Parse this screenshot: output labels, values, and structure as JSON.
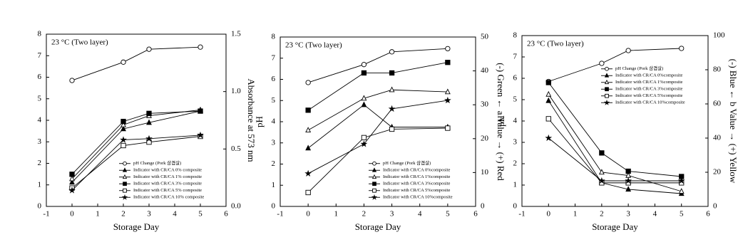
{
  "chart_data": [
    {
      "type": "line",
      "annotation": "23 °C (Two layer)",
      "xlabel": "Storage Day",
      "y2label": "Absorbance at 573 nm",
      "x": [
        0,
        2,
        3,
        5
      ],
      "xlim": [
        -1,
        6
      ],
      "xticks": [
        -1,
        0,
        1,
        2,
        3,
        4,
        5,
        6
      ],
      "ylim": [
        0,
        8
      ],
      "yticks": [
        0,
        1,
        2,
        3,
        4,
        5,
        6,
        7,
        8
      ],
      "y2lim": [
        0,
        1.5
      ],
      "y2ticks": [
        {
          "value": 0,
          "label": "0.0"
        },
        0.5,
        {
          "value": 1,
          "label": "1.0"
        },
        1.5
      ],
      "legend": "lower right",
      "series": [
        {
          "name": "pH Change (Pork 삼겹살)",
          "marker": "circle-open",
          "color": "#000000",
          "values": [
            5.85,
            6.7,
            7.3,
            7.4
          ]
        },
        {
          "name": "Indicator with CR/CA 0% composite",
          "marker": "triangle-filled",
          "color": "#000000",
          "axis": "y2",
          "values": [
            0.21,
            0.675,
            0.73,
            0.83
          ]
        },
        {
          "name": "Indicator with CR/CA 1% composite",
          "marker": "triangle-open",
          "color": "#000000",
          "axis": "y2",
          "values": [
            0.24,
            0.71,
            0.79,
            0.84
          ]
        },
        {
          "name": "Indicator with CR/CA 3% composite",
          "marker": "square-filled",
          "color": "#000000",
          "axis": "y2",
          "values": [
            0.28,
            0.74,
            0.81,
            0.83
          ]
        },
        {
          "name": "Indicator with CR/CA 5% composite",
          "marker": "square-open",
          "color": "#000000",
          "axis": "y2",
          "values": [
            0.16,
            0.53,
            0.56,
            0.61
          ]
        },
        {
          "name": "Indicator with CR/CA 10% composite",
          "marker": "star",
          "color": "#000000",
          "axis": "y2",
          "values": [
            0.14,
            0.58,
            0.59,
            0.62
          ]
        }
      ]
    },
    {
      "type": "line",
      "annotation": "23 °C (Two layer)",
      "xlabel": "Storage Day",
      "ylabel": "pH",
      "y2label": "(-) Green ← a Value → (+) Red",
      "x": [
        0,
        2,
        3,
        5
      ],
      "xlim": [
        -1,
        6
      ],
      "xticks": [
        -1,
        0,
        1,
        2,
        3,
        4,
        5,
        6
      ],
      "ylim": [
        0,
        8
      ],
      "yticks": [
        0,
        1,
        2,
        3,
        4,
        5,
        6,
        7,
        8
      ],
      "y2lim": [
        0,
        50
      ],
      "y2ticks": [
        0,
        10,
        20,
        30,
        40,
        50
      ],
      "legend": "lower right",
      "series": [
        {
          "name": "pH Change (Pork 삼겹살)",
          "marker": "circle-open",
          "color": "#000000",
          "values": [
            5.85,
            6.7,
            7.3,
            7.45
          ]
        },
        {
          "name": "Indicator with CR/CA 0%composite",
          "marker": "triangle-filled",
          "color": "#000000",
          "axis": "y2",
          "values": [
            17.2,
            30,
            23.4,
            23.4
          ]
        },
        {
          "name": "Indicator with CR/CA 1%composite",
          "marker": "triangle-open",
          "color": "#000000",
          "axis": "y2",
          "values": [
            22.5,
            31.9,
            34.4,
            33.8
          ]
        },
        {
          "name": "Indicator with CR/CA 3%composite",
          "marker": "square-filled",
          "color": "#000000",
          "axis": "y2",
          "values": [
            28.4,
            39.4,
            39.4,
            42.5
          ]
        },
        {
          "name": "Indicator with CR/CA 5%composite",
          "marker": "square-open",
          "color": "#000000",
          "axis": "y2",
          "values": [
            4.1,
            20.3,
            22.8,
            23.1
          ]
        },
        {
          "name": "Indicator with CR/CA 10%composite",
          "marker": "star",
          "color": "#000000",
          "axis": "y2",
          "values": [
            9.7,
            18.4,
            28.8,
            31.3
          ]
        }
      ]
    },
    {
      "type": "line",
      "annotation": "23 °C (Two layer)",
      "xlabel": "Storage Day",
      "ylabel": "pH",
      "y2label": "(-) Blue ← b Value → (+) Yellow",
      "x": [
        0,
        2,
        3,
        5
      ],
      "xlim": [
        -1,
        6
      ],
      "xticks": [
        -1,
        0,
        1,
        2,
        3,
        4,
        5,
        6
      ],
      "ylim": [
        0,
        8
      ],
      "yticks": [
        0,
        1,
        2,
        3,
        4,
        5,
        6,
        7,
        8
      ],
      "y2lim": [
        0,
        100
      ],
      "y2ticks": [
        0,
        20,
        40,
        60,
        80,
        100
      ],
      "legend": "upper right",
      "series": [
        {
          "name": "pH Change (Pork 삼겹살)",
          "marker": "circle-open",
          "color": "#000000",
          "values": [
            5.85,
            6.7,
            7.3,
            7.4
          ]
        },
        {
          "name": "Indicator with CR/CA 0%composite",
          "marker": "triangle-filled",
          "color": "#000000",
          "axis": "y2",
          "values": [
            61.9,
            13.8,
            10,
            7.5
          ]
        },
        {
          "name": "Indicator with CR/CA 1%composite",
          "marker": "triangle-open",
          "color": "#000000",
          "axis": "y2",
          "values": [
            65.6,
            20,
            18.1,
            8.8
          ]
        },
        {
          "name": "Indicator with CR/CA 3%composite",
          "marker": "square-filled",
          "color": "#000000",
          "axis": "y2",
          "values": [
            72.5,
            31.3,
            20.6,
            17.5
          ]
        },
        {
          "name": "Indicator with CR/CA 5%composite",
          "marker": "square-open",
          "color": "#000000",
          "axis": "y2",
          "values": [
            51.3,
            13.8,
            13.8,
            13.8
          ]
        },
        {
          "name": "Indicator with CR/CA 10%composite",
          "marker": "star",
          "color": "#000000",
          "axis": "y2",
          "values": [
            40,
            15,
            15,
            15
          ]
        }
      ]
    }
  ]
}
